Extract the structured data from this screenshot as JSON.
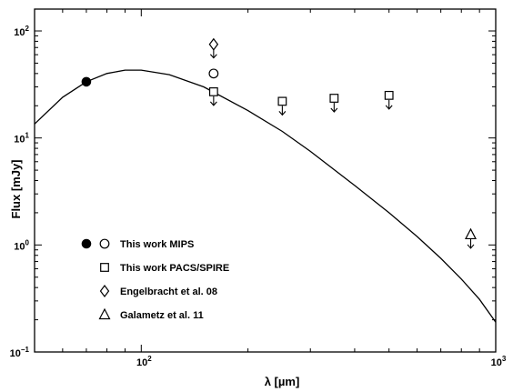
{
  "chart_data": {
    "type": "scatter",
    "xlabel": "λ [µm]",
    "ylabel": "Flux [mJy]",
    "xscale": "log",
    "yscale": "log",
    "xlim": [
      50,
      1000
    ],
    "ylim": [
      0.1,
      160
    ],
    "x_ticks": [
      {
        "value": 100,
        "base": "10",
        "exp": "2"
      },
      {
        "value": 1000,
        "base": "10",
        "exp": "3"
      }
    ],
    "y_ticks": [
      {
        "value": 0.1,
        "base": "10",
        "exp": "−1"
      },
      {
        "value": 1,
        "base": "10",
        "exp": "0"
      },
      {
        "value": 10,
        "base": "10",
        "exp": "1"
      },
      {
        "value": 100,
        "base": "10",
        "exp": "2"
      }
    ],
    "grid": false,
    "legend_position": "bottom-left",
    "series": [
      {
        "name": "This work MIPS",
        "marker": "filled-circle",
        "points": [
          {
            "x": 70,
            "y": 33.5,
            "upper_limit": false
          }
        ]
      },
      {
        "name": "This work MIPS",
        "marker": "open-circle",
        "points": [
          {
            "x": 160,
            "y": 40,
            "upper_limit": false
          }
        ]
      },
      {
        "name": "This work PACS/SPIRE",
        "marker": "open-square",
        "points": [
          {
            "x": 160,
            "y": 27,
            "upper_limit": true
          },
          {
            "x": 250,
            "y": 22,
            "upper_limit": true
          },
          {
            "x": 350,
            "y": 23.5,
            "upper_limit": true
          },
          {
            "x": 500,
            "y": 25,
            "upper_limit": true
          }
        ]
      },
      {
        "name": "Engelbracht et al. 08",
        "marker": "open-diamond",
        "points": [
          {
            "x": 160,
            "y": 75,
            "upper_limit": true
          }
        ]
      },
      {
        "name": "Galametz et al. 11",
        "marker": "open-triangle",
        "points": [
          {
            "x": 850,
            "y": 1.25,
            "upper_limit": true
          }
        ]
      }
    ],
    "model_curve": {
      "type": "modified-blackbody",
      "points": [
        {
          "x": 50,
          "y": 13.5
        },
        {
          "x": 60,
          "y": 24
        },
        {
          "x": 70,
          "y": 33.5
        },
        {
          "x": 80,
          "y": 40
        },
        {
          "x": 90,
          "y": 43
        },
        {
          "x": 100,
          "y": 43
        },
        {
          "x": 120,
          "y": 39
        },
        {
          "x": 150,
          "y": 30
        },
        {
          "x": 200,
          "y": 18
        },
        {
          "x": 250,
          "y": 11.5
        },
        {
          "x": 300,
          "y": 7.5
        },
        {
          "x": 400,
          "y": 3.6
        },
        {
          "x": 500,
          "y": 2.0
        },
        {
          "x": 600,
          "y": 1.2
        },
        {
          "x": 700,
          "y": 0.75
        },
        {
          "x": 800,
          "y": 0.48
        },
        {
          "x": 900,
          "y": 0.31
        },
        {
          "x": 1000,
          "y": 0.19
        }
      ]
    },
    "legend": [
      {
        "markers": [
          "filled-circle",
          "open-circle"
        ],
        "label": "This work MIPS"
      },
      {
        "markers": [
          "open-square"
        ],
        "label": "This work PACS/SPIRE"
      },
      {
        "markers": [
          "open-diamond"
        ],
        "label": "Engelbracht et al. 08"
      },
      {
        "markers": [
          "open-triangle"
        ],
        "label": "Galametz et al. 11"
      }
    ]
  }
}
